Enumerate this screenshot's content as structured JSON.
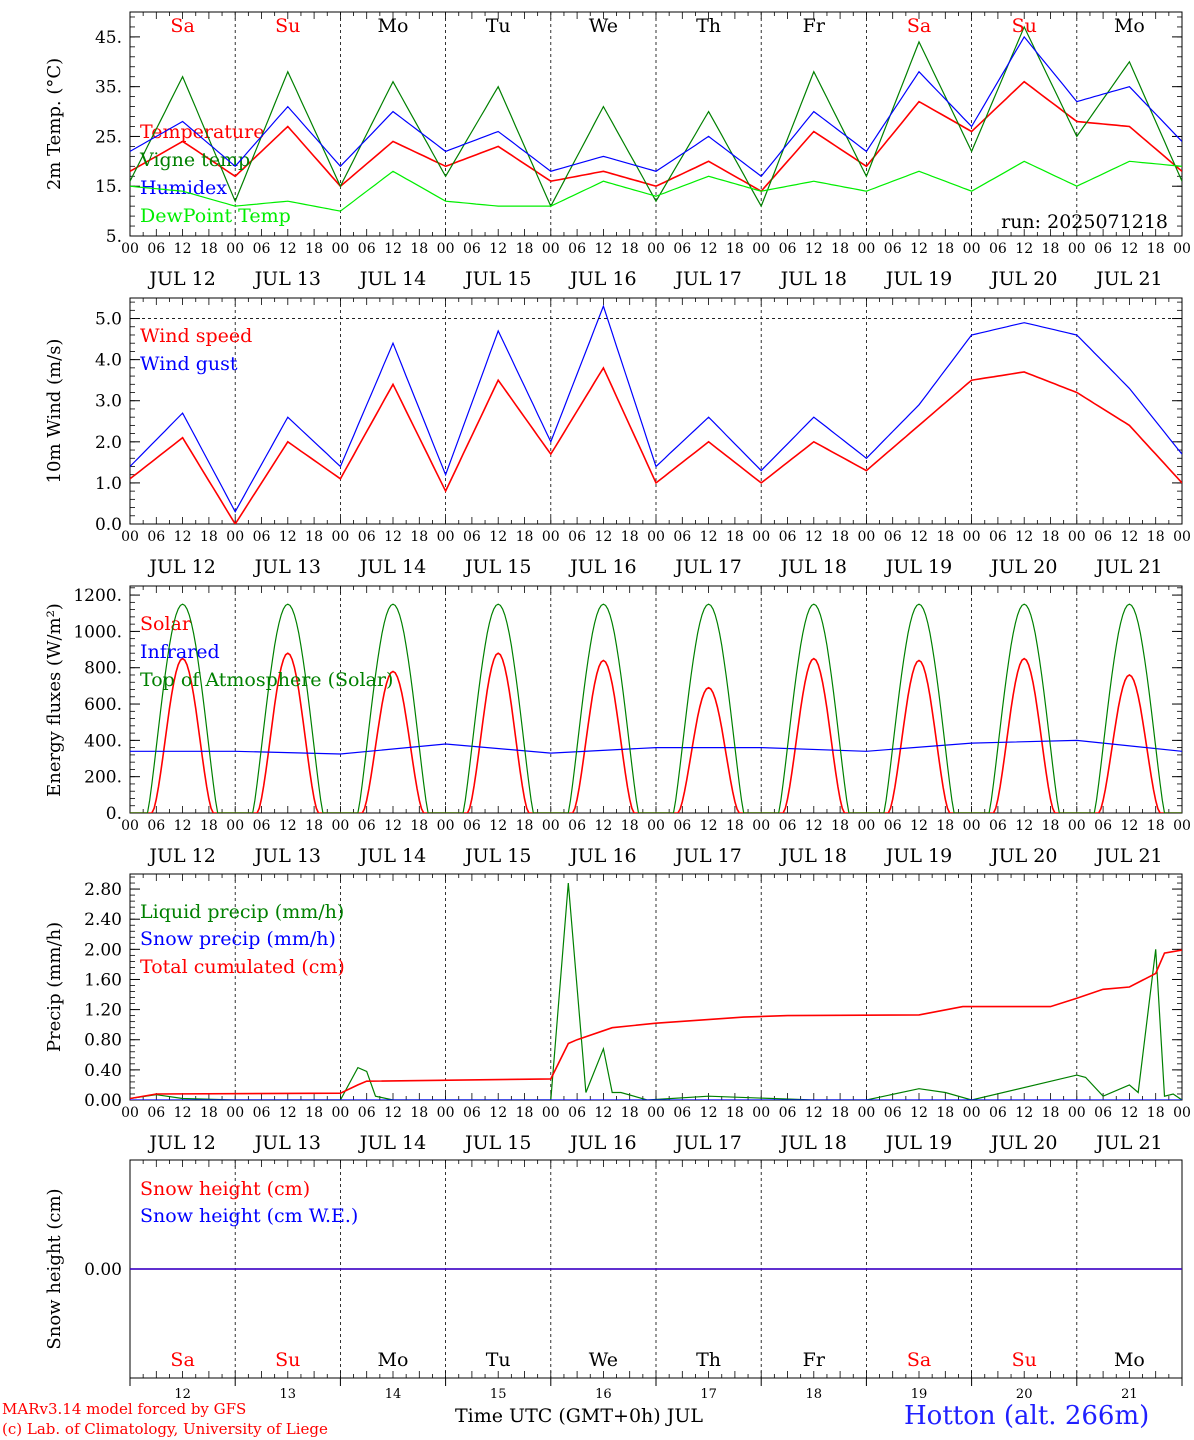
{
  "footer": {
    "credit_line1": "MARv3.14 model forced by GFS",
    "credit_line2": "(c) Lab. of Climatology, University of Liege",
    "location": "Hotton (alt. 266m)",
    "xaxis_title": "Time UTC (GMT+0h) JUL",
    "color_credit": "#ff0000",
    "color_location": "#2020ff"
  },
  "days": {
    "weekdays": [
      "Sa",
      "Su",
      "Mo",
      "Tu",
      "We",
      "Th",
      "Fr",
      "Sa",
      "Su",
      "Mo"
    ],
    "weekend": [
      true,
      true,
      false,
      false,
      false,
      false,
      false,
      true,
      true,
      false
    ],
    "dates": [
      "JUL 12",
      "JUL 13",
      "JUL 14",
      "JUL 15",
      "JUL 16",
      "JUL 17",
      "JUL 18",
      "JUL 19",
      "JUL 20",
      "JUL 21"
    ],
    "day_numbers": [
      "12",
      "13",
      "14",
      "15",
      "16",
      "17",
      "18",
      "19",
      "20",
      "21"
    ],
    "hour_ticks": [
      "00",
      "06",
      "12",
      "18"
    ],
    "end_tick": "00"
  },
  "chart_data": [
    {
      "id": "temp",
      "type": "line",
      "ylabel": "2m Temp. (°C)",
      "ylim": [
        5,
        50
      ],
      "yticks": [
        "5.",
        "15.",
        "25.",
        "35.",
        "45."
      ],
      "ytick_values": [
        5,
        15,
        25,
        35,
        45
      ],
      "annotation": "run: 2025071218",
      "x_unit": "hours since JUL 12 00 UTC",
      "x_points": [
        0,
        12,
        24,
        36,
        48,
        60,
        72,
        84,
        96,
        108,
        120,
        132,
        144,
        156,
        168,
        180,
        192,
        204,
        216,
        228,
        240
      ],
      "series": [
        {
          "name": "Temperature",
          "color": "#ff0000",
          "values": [
            18,
            24,
            17,
            27,
            15,
            24,
            19,
            23,
            16,
            18,
            15,
            20,
            14,
            26,
            19,
            32,
            26,
            36,
            28,
            27,
            18
          ]
        },
        {
          "name": "Vigne temp",
          "color": "#008000",
          "values": [
            16,
            37,
            12,
            38,
            15,
            36,
            17,
            35,
            11,
            31,
            12,
            30,
            11,
            38,
            17,
            44,
            22,
            47,
            25,
            40,
            16
          ]
        },
        {
          "name": "Humidex",
          "color": "#0000ff",
          "values": [
            22,
            28,
            19,
            31,
            19,
            30,
            22,
            26,
            18,
            21,
            18,
            25,
            17,
            30,
            22,
            38,
            27,
            45,
            32,
            35,
            24
          ]
        },
        {
          "name": "DewPoint Temp",
          "color": "#00ee00",
          "values": [
            15,
            14,
            11,
            12,
            10,
            18,
            12,
            11,
            11,
            16,
            13,
            17,
            14,
            16,
            14,
            18,
            14,
            20,
            15,
            20,
            19
          ]
        }
      ]
    },
    {
      "id": "wind",
      "type": "line",
      "ylabel": "10m Wind (m/s)",
      "ylim": [
        0,
        5.5
      ],
      "yticks": [
        "0.0",
        "1.0",
        "2.0",
        "3.0",
        "4.0",
        "5.0"
      ],
      "ytick_values": [
        0,
        1,
        2,
        3,
        4,
        5
      ],
      "x_unit": "hours since JUL 12 00 UTC",
      "x_points": [
        0,
        12,
        24,
        36,
        48,
        60,
        72,
        84,
        96,
        108,
        120,
        132,
        144,
        156,
        168,
        180,
        192,
        204,
        216,
        228,
        240
      ],
      "series": [
        {
          "name": "Wind speed",
          "color": "#ff0000",
          "values": [
            1.1,
            2.1,
            0.0,
            2.0,
            1.1,
            3.4,
            0.8,
            3.5,
            1.7,
            3.8,
            1.0,
            2.0,
            1.0,
            2.0,
            1.3,
            2.4,
            3.5,
            3.7,
            3.2,
            2.4,
            1.0
          ]
        },
        {
          "name": "Wind gust",
          "color": "#0000ff",
          "values": [
            1.4,
            2.7,
            0.3,
            2.6,
            1.4,
            4.4,
            1.2,
            4.7,
            2.0,
            5.3,
            1.4,
            2.6,
            1.3,
            2.6,
            1.6,
            2.9,
            4.6,
            4.9,
            4.6,
            3.3,
            1.7
          ]
        }
      ]
    },
    {
      "id": "energy",
      "type": "line",
      "ylabel": "Energy fluxes (W/m²)",
      "ylim": [
        0,
        1250
      ],
      "yticks": [
        "0.",
        "200.",
        "400.",
        "600.",
        "800.",
        "1000.",
        "1200."
      ],
      "ytick_values": [
        0,
        200,
        400,
        600,
        800,
        1000,
        1200
      ],
      "x_unit": "hours since JUL 12 00 UTC",
      "daily_peak_solar": [
        850,
        880,
        780,
        880,
        840,
        690,
        850,
        840,
        850,
        760
      ],
      "daily_peak_toa": [
        1150,
        1150,
        1150,
        1150,
        1150,
        1150,
        1150,
        1150,
        1150,
        1150
      ],
      "series": [
        {
          "name": "Solar",
          "color": "#ff0000"
        },
        {
          "name": "Infrared",
          "color": "#0000ff",
          "x": [
            0,
            24,
            48,
            72,
            96,
            120,
            144,
            168,
            192,
            216,
            240
          ],
          "values": [
            340,
            340,
            325,
            380,
            330,
            360,
            360,
            340,
            385,
            400,
            340
          ]
        },
        {
          "name": "Top of Atmosphere (Solar)",
          "color": "#008000"
        }
      ]
    },
    {
      "id": "precip",
      "type": "line",
      "ylabel": "Precip (mm/h)",
      "ylim": [
        0,
        3.0
      ],
      "yticks": [
        "0.00",
        "0.40",
        "0.80",
        "1.20",
        "1.60",
        "2.00",
        "2.40",
        "2.80"
      ],
      "ytick_values": [
        0,
        0.4,
        0.8,
        1.2,
        1.6,
        2.0,
        2.4,
        2.8
      ],
      "x_unit": "hours since JUL 12 00 UTC",
      "series": [
        {
          "name": "Liquid precip (mm/h)",
          "color": "#008000",
          "x": [
            0,
            6,
            12,
            24,
            48,
            52,
            54,
            56,
            60,
            96,
            100,
            104,
            108,
            110,
            112,
            118,
            132,
            156,
            168,
            180,
            186,
            192,
            216,
            218,
            222,
            228,
            230,
            234,
            236,
            238,
            240
          ],
          "values": [
            0.02,
            0.07,
            0.02,
            0.0,
            0.0,
            0.43,
            0.38,
            0.05,
            0.0,
            0.0,
            2.88,
            0.1,
            0.68,
            0.1,
            0.1,
            0.0,
            0.05,
            0.0,
            0.0,
            0.15,
            0.1,
            0.0,
            0.33,
            0.3,
            0.05,
            0.2,
            0.1,
            2.0,
            0.05,
            0.08,
            0.0
          ]
        },
        {
          "name": "Snow precip (mm/h)",
          "color": "#0000ff",
          "x": [
            0,
            240
          ],
          "values": [
            0,
            0
          ]
        },
        {
          "name": "Total cumulated (cm)",
          "color": "#ff0000",
          "x": [
            0,
            6,
            48,
            52,
            54,
            96,
            100,
            102,
            110,
            120,
            140,
            150,
            180,
            190,
            210,
            216,
            222,
            228,
            234,
            236,
            240
          ],
          "values": [
            0.02,
            0.08,
            0.09,
            0.2,
            0.25,
            0.28,
            0.75,
            0.8,
            0.96,
            1.02,
            1.1,
            1.12,
            1.13,
            1.24,
            1.24,
            1.35,
            1.47,
            1.5,
            1.68,
            1.95,
            1.99
          ]
        }
      ]
    },
    {
      "id": "snow",
      "type": "line",
      "ylabel": "Snow height (cm)",
      "ylim": [
        -1,
        1
      ],
      "yticks": [
        "0.00"
      ],
      "ytick_values": [
        0
      ],
      "x_unit": "hours since JUL 12 00 UTC",
      "series": [
        {
          "name": "Snow height (cm)",
          "color": "#ff0000",
          "x": [
            0,
            240
          ],
          "values": [
            0,
            0
          ]
        },
        {
          "name": "Snow height (cm W.E.)",
          "color": "#0000ff",
          "x": [
            0,
            240
          ],
          "values": [
            0,
            0
          ]
        }
      ]
    }
  ]
}
